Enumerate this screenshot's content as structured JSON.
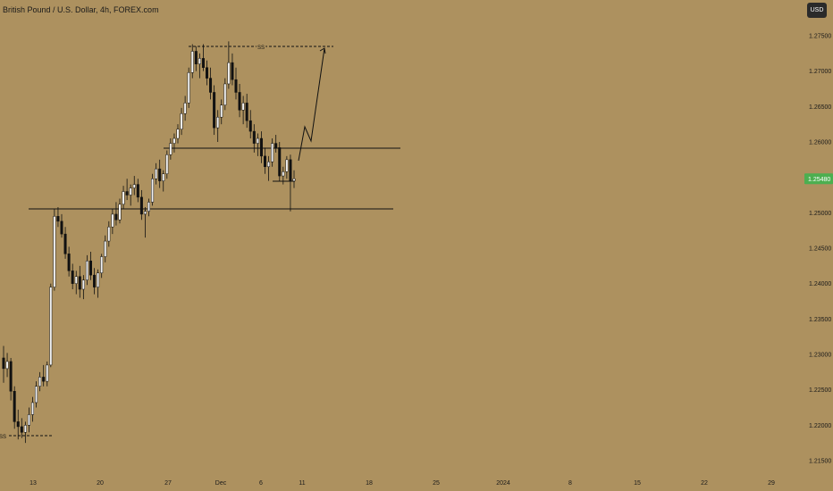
{
  "header": {
    "title": "British Pound / U.S. Dollar, 4h, FOREX.com",
    "currency_button": "USD"
  },
  "price_axis": {
    "ticks": [
      "1.27500",
      "1.27000",
      "1.26500",
      "1.26000",
      "1.25500",
      "1.25000",
      "1.24500",
      "1.24000",
      "1.23500",
      "1.23000",
      "1.22500",
      "1.22000",
      "1.21500"
    ],
    "current_price_label": "1.25480",
    "current_price_color": "#4caf50"
  },
  "time_axis": {
    "ticks": [
      "13",
      "20",
      "27",
      "Dec",
      "6",
      "11",
      "18",
      "25",
      "2024",
      "8",
      "15",
      "22",
      "29"
    ]
  },
  "annotations": {
    "ss_top": "SS",
    "ss_bottom": "SS"
  },
  "chart_data": {
    "type": "candlestick",
    "title": "British Pound / U.S. Dollar, 4h, FOREX.com",
    "xlabel": "",
    "ylabel": "",
    "ylim": [
      1.2135,
      1.2795
    ],
    "x_ticks": [
      "13",
      "20",
      "27",
      "Dec",
      "6",
      "11",
      "18",
      "25",
      "2024",
      "8",
      "15",
      "22",
      "29"
    ],
    "y_ticks": [
      1.275,
      1.27,
      1.265,
      1.26,
      1.255,
      1.25,
      1.245,
      1.24,
      1.235,
      1.23,
      1.225,
      1.22,
      1.215
    ],
    "last_price": 1.2548,
    "up_color": "#111111",
    "down_color": "#111111",
    "candles": [
      [
        1.2295,
        1.2312,
        1.226,
        1.228
      ],
      [
        1.228,
        1.2302,
        1.2268,
        1.229
      ],
      [
        1.229,
        1.2295,
        1.2235,
        1.2248
      ],
      [
        1.2248,
        1.2255,
        1.2195,
        1.2205
      ],
      [
        1.2205,
        1.2222,
        1.218,
        1.2198
      ],
      [
        1.2198,
        1.221,
        1.2182,
        1.219
      ],
      [
        1.219,
        1.2205,
        1.2175,
        1.22
      ],
      [
        1.22,
        1.2225,
        1.219,
        1.2215
      ],
      [
        1.2215,
        1.224,
        1.2205,
        1.2232
      ],
      [
        1.2232,
        1.2262,
        1.2225,
        1.2255
      ],
      [
        1.2255,
        1.2275,
        1.2248,
        1.2268
      ],
      [
        1.2268,
        1.2285,
        1.2255,
        1.2262
      ],
      [
        1.2262,
        1.229,
        1.2255,
        1.2285
      ],
      [
        1.2285,
        1.24,
        1.2282,
        1.2395
      ],
      [
        1.2395,
        1.2505,
        1.239,
        1.2495
      ],
      [
        1.2495,
        1.2508,
        1.248,
        1.2488
      ],
      [
        1.2488,
        1.2498,
        1.2465,
        1.247
      ],
      [
        1.247,
        1.248,
        1.2435,
        1.2442
      ],
      [
        1.2442,
        1.2452,
        1.241,
        1.2418
      ],
      [
        1.2418,
        1.2428,
        1.2392,
        1.24
      ],
      [
        1.24,
        1.2418,
        1.2385,
        1.241
      ],
      [
        1.241,
        1.2425,
        1.238,
        1.2392
      ],
      [
        1.2392,
        1.2412,
        1.2378,
        1.2405
      ],
      [
        1.2405,
        1.244,
        1.2398,
        1.2432
      ],
      [
        1.2432,
        1.2445,
        1.2405,
        1.2412
      ],
      [
        1.2412,
        1.2422,
        1.2385,
        1.2395
      ],
      [
        1.2395,
        1.242,
        1.238,
        1.2415
      ],
      [
        1.2415,
        1.2442,
        1.2408,
        1.2438
      ],
      [
        1.2438,
        1.2468,
        1.243,
        1.246
      ],
      [
        1.246,
        1.2488,
        1.2452,
        1.248
      ],
      [
        1.248,
        1.2505,
        1.247,
        1.2498
      ],
      [
        1.2498,
        1.2515,
        1.2482,
        1.249
      ],
      [
        1.249,
        1.252,
        1.2485,
        1.2512
      ],
      [
        1.2512,
        1.2538,
        1.2505,
        1.253
      ],
      [
        1.253,
        1.2548,
        1.2518,
        1.2525
      ],
      [
        1.2525,
        1.254,
        1.251,
        1.2535
      ],
      [
        1.2535,
        1.2552,
        1.2525,
        1.254
      ],
      [
        1.254,
        1.2548,
        1.2515,
        1.2522
      ],
      [
        1.2522,
        1.2532,
        1.249,
        1.2498
      ],
      [
        1.2498,
        1.2508,
        1.2465,
        1.2502
      ],
      [
        1.2502,
        1.252,
        1.2495,
        1.2515
      ],
      [
        1.2515,
        1.2555,
        1.251,
        1.2548
      ],
      [
        1.2548,
        1.257,
        1.254,
        1.2562
      ],
      [
        1.2562,
        1.2575,
        1.2535,
        1.2545
      ],
      [
        1.2545,
        1.256,
        1.253,
        1.2555
      ],
      [
        1.2555,
        1.2588,
        1.2548,
        1.2582
      ],
      [
        1.2582,
        1.2605,
        1.2575,
        1.2598
      ],
      [
        1.2598,
        1.2612,
        1.2585,
        1.2605
      ],
      [
        1.2605,
        1.2625,
        1.2598,
        1.2618
      ],
      [
        1.2618,
        1.2648,
        1.261,
        1.264
      ],
      [
        1.264,
        1.2665,
        1.263,
        1.2655
      ],
      [
        1.2655,
        1.2705,
        1.2648,
        1.2698
      ],
      [
        1.2698,
        1.2738,
        1.269,
        1.2728
      ],
      [
        1.2728,
        1.2735,
        1.27,
        1.271
      ],
      [
        1.271,
        1.2725,
        1.269,
        1.2718
      ],
      [
        1.2718,
        1.2738,
        1.27,
        1.2705
      ],
      [
        1.2705,
        1.2715,
        1.268,
        1.269
      ],
      [
        1.269,
        1.2705,
        1.266,
        1.267
      ],
      [
        1.267,
        1.268,
        1.261,
        1.262
      ],
      [
        1.262,
        1.2645,
        1.26,
        1.2635
      ],
      [
        1.2635,
        1.266,
        1.2625,
        1.2652
      ],
      [
        1.2652,
        1.269,
        1.2645,
        1.2682
      ],
      [
        1.2682,
        1.2742,
        1.2675,
        1.2712
      ],
      [
        1.2712,
        1.2725,
        1.268,
        1.2688
      ],
      [
        1.2688,
        1.2705,
        1.266,
        1.267
      ],
      [
        1.267,
        1.2682,
        1.2635,
        1.2645
      ],
      [
        1.2645,
        1.2665,
        1.2625,
        1.2655
      ],
      [
        1.2655,
        1.2668,
        1.262,
        1.263
      ],
      [
        1.263,
        1.2645,
        1.2605,
        1.2615
      ],
      [
        1.2615,
        1.2625,
        1.2585,
        1.2598
      ],
      [
        1.2598,
        1.2612,
        1.258,
        1.2605
      ],
      [
        1.2605,
        1.2615,
        1.257,
        1.258
      ],
      [
        1.258,
        1.2592,
        1.2555,
        1.2565
      ],
      [
        1.2565,
        1.258,
        1.2545,
        1.2572
      ],
      [
        1.2572,
        1.2605,
        1.2565,
        1.2598
      ],
      [
        1.2598,
        1.261,
        1.2585,
        1.2592
      ],
      [
        1.2592,
        1.26,
        1.2545,
        1.2552
      ],
      [
        1.2552,
        1.2565,
        1.254,
        1.2558
      ],
      [
        1.2558,
        1.258,
        1.2548,
        1.2575
      ],
      [
        1.2575,
        1.2582,
        1.2502,
        1.2545
      ],
      [
        1.2545,
        1.256,
        1.2535,
        1.2548
      ]
    ]
  }
}
